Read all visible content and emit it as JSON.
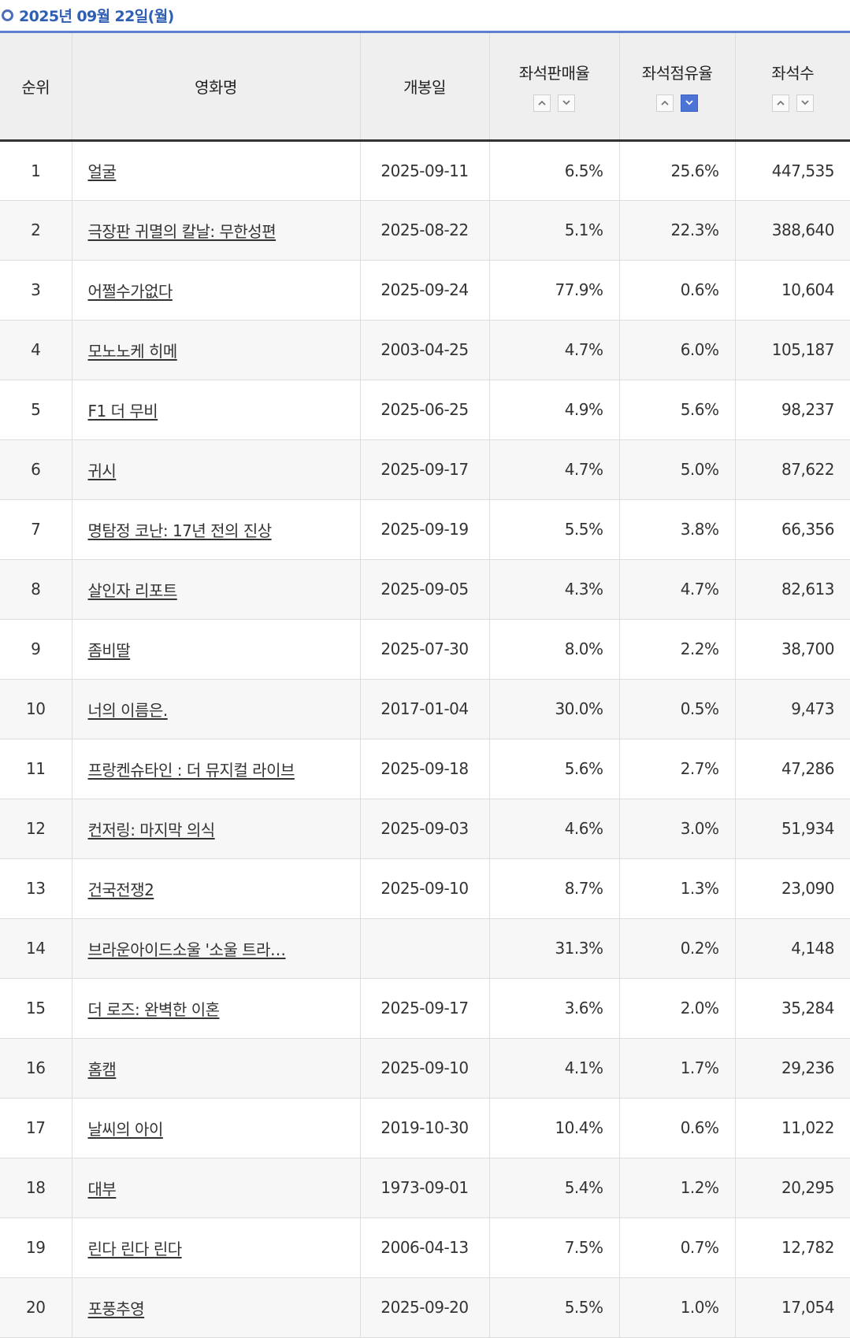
{
  "date_header": "2025년 09월 22일(월)",
  "columns": {
    "rank": "순위",
    "title": "영화명",
    "release_date": "개봉일",
    "seat_sales_rate": "좌석판매율",
    "seat_share": "좌석점유율",
    "seats": "좌석수"
  },
  "sort": {
    "active_column": "seat_share",
    "active_direction": "down"
  },
  "colors": {
    "header_accent": "#2f5fb3",
    "active_sort": "#4c74d6"
  },
  "rows": [
    {
      "rank": "1",
      "title": "얼굴",
      "release": "2025-09-11",
      "sales": "6.5%",
      "share": "25.6%",
      "seats": "447,535"
    },
    {
      "rank": "2",
      "title": "극장판 귀멸의 칼날: 무한성편",
      "release": "2025-08-22",
      "sales": "5.1%",
      "share": "22.3%",
      "seats": "388,640"
    },
    {
      "rank": "3",
      "title": "어쩔수가없다",
      "release": "2025-09-24",
      "sales": "77.9%",
      "share": "0.6%",
      "seats": "10,604"
    },
    {
      "rank": "4",
      "title": "모노노케 히메",
      "release": "2003-04-25",
      "sales": "4.7%",
      "share": "6.0%",
      "seats": "105,187"
    },
    {
      "rank": "5",
      "title": "F1 더 무비",
      "release": "2025-06-25",
      "sales": "4.9%",
      "share": "5.6%",
      "seats": "98,237"
    },
    {
      "rank": "6",
      "title": "귀시",
      "release": "2025-09-17",
      "sales": "4.7%",
      "share": "5.0%",
      "seats": "87,622"
    },
    {
      "rank": "7",
      "title": "명탐정 코난: 17년 전의 진상",
      "release": "2025-09-19",
      "sales": "5.5%",
      "share": "3.8%",
      "seats": "66,356"
    },
    {
      "rank": "8",
      "title": "살인자 리포트",
      "release": "2025-09-05",
      "sales": "4.3%",
      "share": "4.7%",
      "seats": "82,613"
    },
    {
      "rank": "9",
      "title": "좀비딸",
      "release": "2025-07-30",
      "sales": "8.0%",
      "share": "2.2%",
      "seats": "38,700"
    },
    {
      "rank": "10",
      "title": "너의 이름은.",
      "release": "2017-01-04",
      "sales": "30.0%",
      "share": "0.5%",
      "seats": "9,473"
    },
    {
      "rank": "11",
      "title": "프랑켄슈타인 : 더 뮤지컬 라이브",
      "release": "2025-09-18",
      "sales": "5.6%",
      "share": "2.7%",
      "seats": "47,286"
    },
    {
      "rank": "12",
      "title": "컨저링: 마지막 의식",
      "release": "2025-09-03",
      "sales": "4.6%",
      "share": "3.0%",
      "seats": "51,934"
    },
    {
      "rank": "13",
      "title": "건국전쟁2",
      "release": "2025-09-10",
      "sales": "8.7%",
      "share": "1.3%",
      "seats": "23,090"
    },
    {
      "rank": "14",
      "title": "브라운아이드소울 '소울 트라…",
      "release": "",
      "sales": "31.3%",
      "share": "0.2%",
      "seats": "4,148"
    },
    {
      "rank": "15",
      "title": "더 로즈: 완벽한 이혼",
      "release": "2025-09-17",
      "sales": "3.6%",
      "share": "2.0%",
      "seats": "35,284"
    },
    {
      "rank": "16",
      "title": "홈캠",
      "release": "2025-09-10",
      "sales": "4.1%",
      "share": "1.7%",
      "seats": "29,236"
    },
    {
      "rank": "17",
      "title": "날씨의 아이",
      "release": "2019-10-30",
      "sales": "10.4%",
      "share": "0.6%",
      "seats": "11,022"
    },
    {
      "rank": "18",
      "title": "대부",
      "release": "1973-09-01",
      "sales": "5.4%",
      "share": "1.2%",
      "seats": "20,295"
    },
    {
      "rank": "19",
      "title": "린다 린다 린다",
      "release": "2006-04-13",
      "sales": "7.5%",
      "share": "0.7%",
      "seats": "12,782"
    },
    {
      "rank": "20",
      "title": "포풍추영",
      "release": "2025-09-20",
      "sales": "5.5%",
      "share": "1.0%",
      "seats": "17,054"
    }
  ]
}
